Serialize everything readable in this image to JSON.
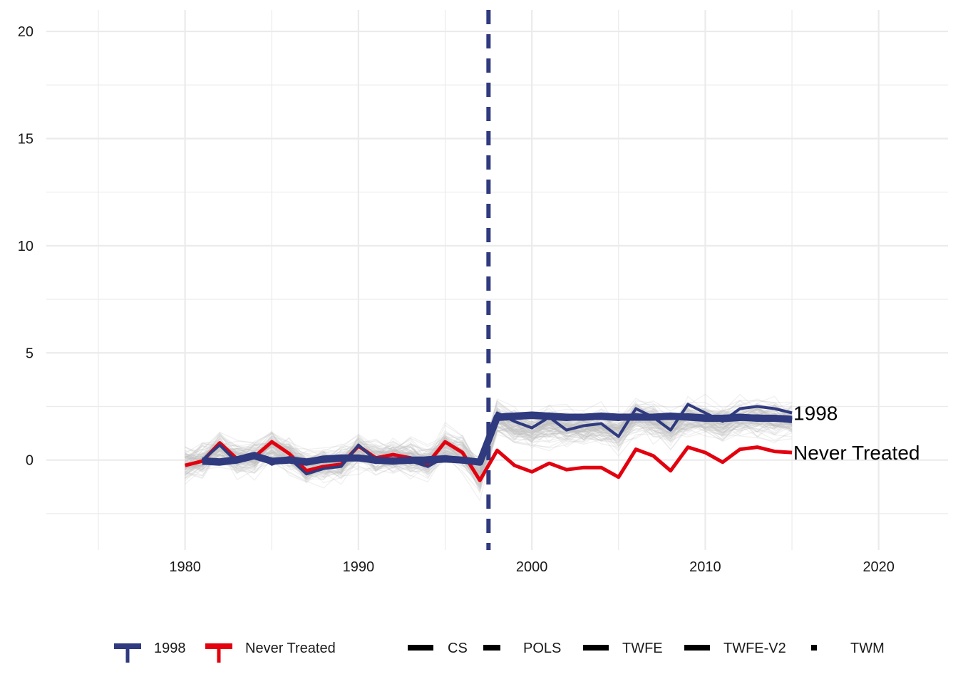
{
  "chart_data": {
    "type": "line",
    "title": "",
    "xlabel": "",
    "ylabel": "",
    "xlim": [
      1972,
      2024
    ],
    "ylim": [
      -4.2,
      21
    ],
    "x_ticks": [
      1980,
      1990,
      2000,
      2010,
      2020
    ],
    "y_ticks": [
      0,
      5,
      10,
      15,
      20
    ],
    "x_minor_ticks": [
      1975,
      1985,
      1995,
      2005,
      2015
    ],
    "y_minor_ticks": [
      -2.5,
      2.5,
      7.5,
      12.5,
      17.5
    ],
    "grid": true,
    "legend_position": "bottom",
    "treatment_line": {
      "x": 1997.5,
      "color": "#2f3a7f",
      "style": "dashed"
    },
    "colors": {
      "treated": "#2f3a7f",
      "never": "#e3000f",
      "background_lines": "#bdbdbd",
      "grid": "#ebebeb"
    },
    "end_labels": [
      {
        "text": "1998",
        "x": 2015,
        "y": 2.2
      },
      {
        "text": "Never Treated",
        "x": 2015,
        "y": 0.35
      }
    ],
    "background_band": {
      "note": "",
      "pre_x": [
        1980,
        1981,
        1982,
        1983,
        1984,
        1985,
        1986,
        1987,
        1988,
        1989,
        1990,
        1991,
        1992,
        1993,
        1994,
        1995,
        1996,
        1997
      ],
      "post_x": [
        1998,
        1999,
        2000,
        2001,
        2002,
        2003,
        2004,
        2005,
        2006,
        2007,
        2008,
        2009,
        2010,
        2011,
        2012,
        2013,
        2014,
        2015
      ]
    },
    "series": [
      {
        "name": "Never Treated",
        "role": "never",
        "width": 5,
        "x": [
          1980,
          1981,
          1982,
          1983,
          1984,
          1985,
          1986,
          1987,
          1988,
          1989,
          1990,
          1991,
          1992,
          1993,
          1994,
          1995,
          1996,
          1997,
          1998,
          1999,
          2000,
          2001,
          2002,
          2003,
          2004,
          2005,
          2006,
          2007,
          2008,
          2009,
          2010,
          2011,
          2012,
          2013,
          2014,
          2015
        ],
        "y": [
          -0.25,
          -0.05,
          0.8,
          0.05,
          0.15,
          0.85,
          0.3,
          -0.5,
          -0.3,
          -0.2,
          0.65,
          0.1,
          0.25,
          0.1,
          -0.15,
          0.85,
          0.35,
          -0.95,
          0.45,
          -0.25,
          -0.55,
          -0.15,
          -0.45,
          -0.35,
          -0.35,
          -0.8,
          0.5,
          0.2,
          -0.5,
          0.6,
          0.35,
          -0.1,
          0.5,
          0.6,
          0.4,
          0.35
        ]
      },
      {
        "name": "1998",
        "role": "treated",
        "width": 4,
        "x": [
          1981,
          1982,
          1983,
          1984,
          1985,
          1986,
          1987,
          1988,
          1989,
          1990,
          1991,
          1992,
          1993,
          1994,
          1995,
          1996,
          1997,
          1998,
          1999,
          2000,
          2001,
          2002,
          2003,
          2004,
          2005,
          2006,
          2007,
          2008,
          2009,
          2010,
          2011,
          2012,
          2013,
          2014,
          2015
        ],
        "y": [
          0.0,
          0.7,
          -0.1,
          0.3,
          -0.2,
          0.1,
          -0.65,
          -0.4,
          -0.3,
          0.7,
          0.0,
          0.0,
          -0.05,
          -0.3,
          0.15,
          -0.1,
          -0.1,
          2.2,
          1.8,
          1.5,
          2.0,
          1.4,
          1.6,
          1.7,
          1.1,
          2.4,
          2.0,
          1.4,
          2.6,
          2.2,
          1.8,
          2.4,
          2.5,
          2.4,
          2.2
        ]
      },
      {
        "name": "CS",
        "role": "treated",
        "width": 10,
        "x": [
          1981,
          1982,
          1983,
          1984,
          1985,
          1986,
          1987,
          1988,
          1989,
          1990,
          1991,
          1992,
          1993,
          1994,
          1995,
          1996,
          1997,
          1998,
          1999,
          2000,
          2001,
          2002,
          2003,
          2004,
          2005,
          2006,
          2007,
          2008,
          2009,
          2010,
          2011,
          2012,
          2013,
          2014,
          2015
        ],
        "y": [
          -0.05,
          -0.1,
          0.0,
          0.2,
          -0.05,
          0.0,
          -0.1,
          0.05,
          0.1,
          0.1,
          0.0,
          -0.05,
          0.0,
          0.0,
          0.05,
          0.0,
          -0.1,
          2.0,
          2.05,
          2.1,
          2.05,
          2.0,
          2.0,
          2.05,
          2.0,
          2.0,
          2.0,
          2.05,
          2.0,
          1.95,
          1.95,
          2.0,
          1.95,
          1.95,
          1.9
        ]
      },
      {
        "name": "TWFE",
        "role": "treated",
        "width": 8,
        "x": [
          1981,
          1982,
          1983,
          1984,
          1985,
          1986,
          1987,
          1988,
          1989,
          1990,
          1991,
          1992,
          1993,
          1994,
          1995,
          1996,
          1997,
          1998,
          1999,
          2000,
          2001,
          2002,
          2003,
          2004,
          2005,
          2006,
          2007,
          2008,
          2009,
          2010,
          2011,
          2012,
          2013,
          2014,
          2015
        ],
        "y": [
          0.0,
          -0.05,
          0.05,
          0.25,
          -0.1,
          0.05,
          -0.05,
          0.0,
          0.05,
          0.1,
          -0.05,
          0.0,
          -0.05,
          0.05,
          0.1,
          0.0,
          -0.1,
          1.95,
          2.0,
          2.05,
          2.0,
          1.95,
          2.0,
          2.0,
          1.95,
          2.05,
          2.0,
          2.0,
          2.05,
          2.0,
          1.9,
          1.95,
          2.0,
          1.95,
          1.85
        ]
      }
    ]
  },
  "legend": {
    "colour_items": [
      {
        "label": "1998",
        "color": "#2f3a7f"
      },
      {
        "label": "Never Treated",
        "color": "#e3000f"
      }
    ],
    "linetype_items": [
      {
        "label": "CS",
        "dash": "solid-long"
      },
      {
        "label": "POLS",
        "dash": "dashed"
      },
      {
        "label": "TWFE",
        "dash": "solid"
      },
      {
        "label": "TWFE-V2",
        "dash": "solid"
      },
      {
        "label": "TWM",
        "dash": "dotted"
      }
    ]
  }
}
